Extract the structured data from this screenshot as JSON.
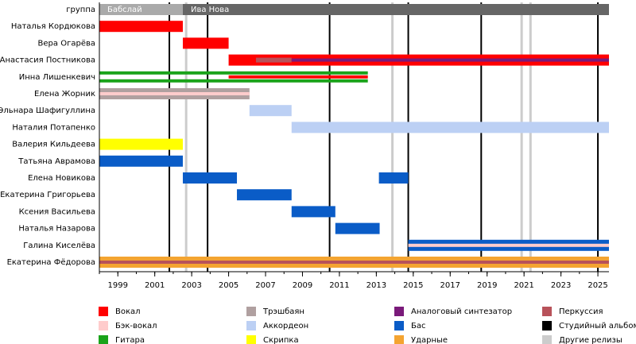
{
  "chart_data": {
    "type": "timeline",
    "xlim": [
      1998,
      2025.6
    ],
    "xticks": [
      1999,
      2001,
      2003,
      2005,
      2007,
      2009,
      2011,
      2013,
      2015,
      2017,
      2019,
      2021,
      2023,
      2025
    ],
    "roles": [
      {
        "name": "Вокал",
        "color": "#ff0000"
      },
      {
        "name": "Бэк-вокал",
        "color": "#ffcccc"
      },
      {
        "name": "Гитара",
        "color": "#1aa31a"
      },
      {
        "name": "Трэшбаян",
        "color": "#b0a0a0"
      },
      {
        "name": "Аккордеон",
        "color": "#bcd0f4"
      },
      {
        "name": "Скрипка",
        "color": "#ffff00"
      },
      {
        "name": "Аналоговый синтезатор",
        "color": "#7a1a7a"
      },
      {
        "name": "Бас",
        "color": "#0a5cc7"
      },
      {
        "name": "Ударные",
        "color": "#f4a431"
      },
      {
        "name": "Перкуссия",
        "color": "#b8525a"
      },
      {
        "name": "Студийный альбом",
        "color": "#000000"
      },
      {
        "name": "Другие релизы",
        "color": "#cccccc"
      }
    ],
    "group": {
      "label": "группа",
      "periods": [
        {
          "name": "Бабслай",
          "start": 1998,
          "end": 2002.52,
          "color": "#aaaaaa"
        },
        {
          "name": "Ива Нова",
          "start": 2002.52,
          "end": 2025.6,
          "color": "#666666"
        }
      ]
    },
    "studio_albums": [
      2001.79,
      2003.86,
      2010.47,
      2014.73,
      2018.68,
      2025.0
    ],
    "other_releases": [
      2002.7,
      2013.87,
      2020.87,
      2021.35
    ],
    "members": [
      {
        "name": "Наталья Кордюкова",
        "bars": [
          {
            "role": "Вокал",
            "lane": "full",
            "start": 1998,
            "end": 2002.52
          }
        ]
      },
      {
        "name": "Вера Огарёва",
        "bars": [
          {
            "role": "Вокал",
            "lane": "full",
            "start": 2002.52,
            "end": 2005.0
          }
        ]
      },
      {
        "name": "Анастасия Постникова",
        "bars": [
          {
            "role": "Вокал",
            "lane": "full",
            "start": 2005.0,
            "end": 2025.6
          },
          {
            "role": "Перкуссия",
            "lane": "middle",
            "start": 2006.48,
            "end": 2008.41
          },
          {
            "role": "Аналоговый синтезатор",
            "lane": "thin",
            "start": 2008.41,
            "end": 2025.6
          }
        ]
      },
      {
        "name": "Инна Лишенкевич",
        "bars": [
          {
            "role": "Гитара",
            "lane": "top",
            "start": 1998,
            "end": 2012.54
          },
          {
            "role": "Гитара",
            "lane": "bottom",
            "start": 1998,
            "end": 2012.54
          },
          {
            "role": "Вокал",
            "lane": "thin",
            "start": 2005.0,
            "end": 2012.54
          }
        ]
      },
      {
        "name": "Елена Жорник",
        "bars": [
          {
            "role": "Трэшбаян",
            "lane": "full",
            "start": 1998,
            "end": 2006.13
          },
          {
            "role": "Бэк-вокал",
            "lane": "thin",
            "start": 1998,
            "end": 2006.13
          }
        ]
      },
      {
        "name": "Эльнара Шафигуллина",
        "bars": [
          {
            "role": "Аккордеон",
            "lane": "full",
            "start": 2006.13,
            "end": 2008.41
          }
        ]
      },
      {
        "name": "Наталия Потапенко",
        "bars": [
          {
            "role": "Аккордеон",
            "lane": "full",
            "start": 2008.41,
            "end": 2025.6
          }
        ]
      },
      {
        "name": "Валерия Кильдеева",
        "bars": [
          {
            "role": "Скрипка",
            "lane": "full",
            "start": 1998,
            "end": 2002.52
          }
        ]
      },
      {
        "name": "Татьяна Аврамова",
        "bars": [
          {
            "role": "Бас",
            "lane": "full",
            "start": 1998,
            "end": 2002.52
          }
        ]
      },
      {
        "name": "Елена Новикова",
        "bars": [
          {
            "role": "Бас",
            "lane": "full",
            "start": 2002.52,
            "end": 2005.45
          },
          {
            "role": "Бас",
            "lane": "full",
            "start": 2013.14,
            "end": 2014.73
          }
        ]
      },
      {
        "name": "Екатерина Григорьева",
        "bars": [
          {
            "role": "Бас",
            "lane": "full",
            "start": 2005.45,
            "end": 2008.41
          }
        ]
      },
      {
        "name": "Ксения Васильева",
        "bars": [
          {
            "role": "Бас",
            "lane": "full",
            "start": 2008.41,
            "end": 2010.78
          }
        ]
      },
      {
        "name": "Наталья Назарова",
        "bars": [
          {
            "role": "Бас",
            "lane": "full",
            "start": 2010.78,
            "end": 2013.18
          }
        ]
      },
      {
        "name": "Галина Киселёва",
        "bars": [
          {
            "role": "Бас",
            "lane": "full",
            "start": 2014.73,
            "end": 2025.6
          },
          {
            "role": "Бэк-вокал",
            "lane": "thin",
            "start": 2014.73,
            "end": 2025.6
          }
        ]
      },
      {
        "name": "Екатерина Фёдорова",
        "bars": [
          {
            "role": "Ударные",
            "lane": "full",
            "start": 1998,
            "end": 2025.6
          },
          {
            "role": "Перкуссия",
            "lane": "thin",
            "start": 1998,
            "end": 2025.6
          }
        ]
      }
    ]
  }
}
